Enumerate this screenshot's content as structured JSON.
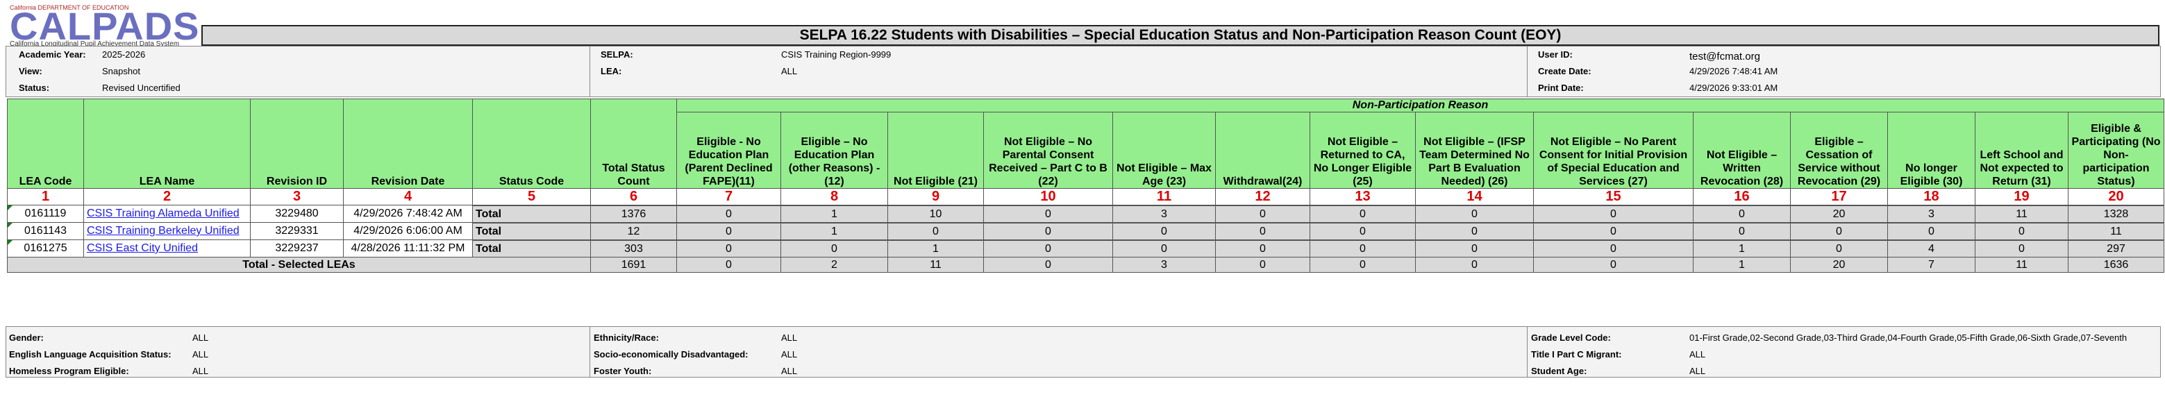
{
  "logo": {
    "small": "California DEPARTMENT OF EDUCATION",
    "big": "CALPADS",
    "sub": "California Longitudinal Pupil Achievement Data System"
  },
  "report_title": "SELPA 16.22 Students with Disabilities – Special Education Status and Non-Participation Reason Count (EOY)",
  "header": {
    "academic_year_label": "Academic Year:",
    "academic_year": "2025-2026",
    "view_label": "View:",
    "view": "Snapshot",
    "status_label": "Status:",
    "status": "Revised Uncertified",
    "selpa_label": "SELPA:",
    "selpa": "CSIS Training Region-9999",
    "lea_label": "LEA:",
    "lea": "ALL",
    "user_id_label": "User ID:",
    "user_id": "test@fcmat.org",
    "create_date_label": "Create Date:",
    "create_date": "4/29/2026 7:48:41 AM",
    "print_date_label": "Print Date:",
    "print_date": "4/29/2026 9:33:01 AM"
  },
  "table": {
    "np_header": "Non-Participation Reason",
    "columns": [
      "LEA Code",
      "LEA Name",
      "Revision ID",
      "Revision Date",
      "Status Code",
      "Total Status Count",
      "Eligible - No Education Plan (Parent Declined FAPE)(11)",
      "Eligible – No Education Plan (other Reasons) - (12)",
      "Not Eligible (21)",
      "Not Eligible – No Parental Consent Received – Part C to B (22)",
      "Not Eligible – Max Age (23)",
      "Withdrawal(24)",
      "Not Eligible – Returned to CA, No Longer Eligible (25)",
      "Not Eligible – (IFSP Team Determined No Part B Evaluation Needed) (26)",
      "Not Eligible – No Parent Consent for Initial Provision of Special Education and Services (27)",
      "Not Eligible – Written Revocation (28)",
      "Eligible – Cessation of Service without Revocation (29)",
      "No longer Eligible (30)",
      "Left School and Not expected to Return (31)",
      "Eligible & Participating (No Non-participation Status)"
    ],
    "numbers": [
      "1",
      "2",
      "3",
      "4",
      "5",
      "6",
      "7",
      "8",
      "9",
      "10",
      "11",
      "12",
      "13",
      "14",
      "15",
      "16",
      "17",
      "18",
      "19",
      "20"
    ],
    "leas": [
      {
        "code": "0161119",
        "name": "CSIS Training Alameda Unified",
        "revision_id": "3229480",
        "revision_date": "4/29/2026 7:48:42 AM",
        "total_label": "Total",
        "totals": [
          "1376",
          "0",
          "1",
          "10",
          "0",
          "3",
          "0",
          "0",
          "0",
          "0",
          "0",
          "20",
          "3",
          "11",
          "1328"
        ]
      },
      {
        "code": "0161143",
        "name": "CSIS Training Berkeley Unified",
        "revision_id": "3229331",
        "revision_date": "4/29/2026 6:06:00 AM",
        "total_label": "Total",
        "totals": [
          "12",
          "0",
          "1",
          "0",
          "0",
          "0",
          "0",
          "0",
          "0",
          "0",
          "0",
          "0",
          "0",
          "0",
          "11"
        ]
      },
      {
        "code": "0161275",
        "name": "CSIS East City Unified",
        "revision_id": "3229237",
        "revision_date": "4/28/2026 11:11:32 PM",
        "total_label": "Total",
        "totals": [
          "303",
          "0",
          "0",
          "1",
          "0",
          "0",
          "0",
          "0",
          "0",
          "0",
          "1",
          "0",
          "4",
          "0",
          "297"
        ]
      }
    ],
    "grand_total_label": "Total - Selected LEAs",
    "grand_totals": [
      "1691",
      "0",
      "2",
      "11",
      "0",
      "3",
      "0",
      "0",
      "0",
      "0",
      "1",
      "20",
      "7",
      "11",
      "1636"
    ]
  },
  "footer": {
    "gender_label": "Gender:",
    "gender": "ALL",
    "ela_label": "English Language Acquisition Status:",
    "ela": "ALL",
    "homeless_label": "Homeless Program Eligible:",
    "homeless": "ALL",
    "ethnicity_label": "Ethnicity/Race:",
    "ethnicity": "ALL",
    "sed_label": "Socio-economically Disadvantaged:",
    "sed": "ALL",
    "foster_label": "Foster Youth:",
    "foster": "ALL",
    "grade_label": "Grade Level Code:",
    "grade": "01-First Grade,02-Second Grade,03-Third Grade,04-Fourth Grade,05-Fifth Grade,06-Sixth Grade,07-Seventh",
    "migrant_label": "Title I Part C Migrant:",
    "migrant": "ALL",
    "age_label": "Student Age:",
    "age": "ALL"
  }
}
